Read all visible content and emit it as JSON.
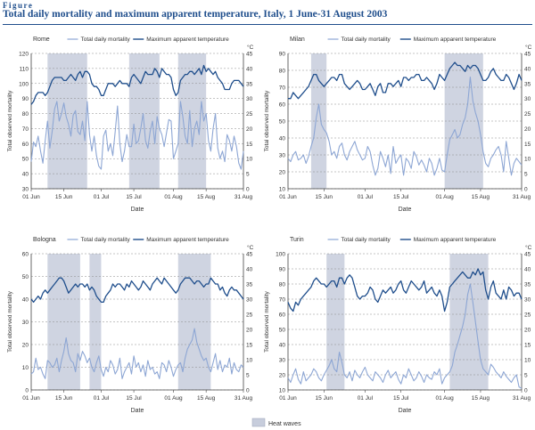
{
  "figure": {
    "label": "Figure",
    "title": "Total daily mortality and maximum apparent temperature, Italy, 1 June-31 August 2003"
  },
  "colors": {
    "mortality": "#8da6d4",
    "temperature": "#1f4e8c",
    "heatwave": "#c7cddc",
    "grid": "#8a8a8a"
  },
  "bottom_legend": {
    "heatwave_label": "Heat waves"
  },
  "chart_data": [
    {
      "type": "line",
      "title": "Rome",
      "xlabel": "Date",
      "ylabel": "Total observed mortality",
      "y2label": "°C",
      "xticks": [
        "01 Jun",
        "15 Jun",
        "01 Jul",
        "15 Jul",
        "01 Aug",
        "15 Aug",
        "31 Aug"
      ],
      "xtick_days": [
        0,
        14,
        30,
        44,
        61,
        75,
        91
      ],
      "ylim": [
        30,
        120
      ],
      "yticks": [
        30,
        40,
        50,
        60,
        70,
        80,
        90,
        100,
        110,
        120
      ],
      "y2lim": [
        0,
        45
      ],
      "y2ticks": [
        0,
        5,
        10,
        15,
        20,
        25,
        30,
        35,
        40,
        45
      ],
      "heatwaves": [
        [
          7,
          24
        ],
        [
          42,
          55
        ],
        [
          63,
          75
        ]
      ],
      "legend": [
        "Total daily mortality",
        "Maximum apparent temperature"
      ],
      "series": [
        {
          "name": "Total daily mortality",
          "axis": "left",
          "values": [
            48,
            61,
            58,
            65,
            55,
            47,
            62,
            75,
            57,
            68,
            83,
            88,
            75,
            80,
            87,
            78,
            73,
            65,
            79,
            82,
            68,
            66,
            75,
            62,
            88,
            66,
            55,
            65,
            52,
            45,
            43,
            65,
            69,
            55,
            60,
            52,
            68,
            85,
            60,
            48,
            55,
            66,
            58,
            58,
            73,
            60,
            62,
            70,
            80,
            62,
            57,
            68,
            75,
            60,
            78,
            70,
            66,
            58,
            67,
            76,
            75,
            50,
            55,
            60,
            88,
            78,
            65,
            60,
            82,
            58,
            70,
            75,
            66,
            88,
            75,
            80,
            62,
            55,
            70,
            80,
            57,
            50,
            55,
            48,
            66,
            62,
            55,
            65,
            58,
            47,
            43,
            55
          ]
        },
        {
          "name": "Maximum apparent temperature",
          "axis": "right",
          "values": [
            28,
            29,
            31,
            32,
            32,
            32,
            31,
            32,
            34,
            36,
            37,
            37,
            37,
            37,
            36,
            36,
            37,
            38,
            37,
            36,
            38,
            39,
            37,
            39,
            39,
            38,
            35,
            34,
            34,
            33,
            31,
            31,
            33,
            35,
            35,
            35,
            34,
            35,
            36,
            35,
            35,
            35,
            34,
            37,
            38,
            37,
            36,
            35,
            37,
            39,
            38,
            38,
            38,
            40,
            39,
            37,
            40,
            39,
            38,
            38,
            37,
            33,
            31,
            32,
            36,
            37,
            38,
            38,
            39,
            39,
            38,
            39,
            40,
            38,
            41,
            39,
            40,
            39,
            38,
            39,
            37,
            36,
            35,
            33,
            33,
            33,
            35,
            36,
            36,
            36,
            35,
            34
          ]
        }
      ]
    },
    {
      "type": "line",
      "title": "Milan",
      "xlabel": "Date",
      "ylabel": "Total observed mortality",
      "y2label": "°C",
      "xticks": [
        "01 Jun",
        "15 Jun",
        "01 Jul",
        "15 Jul",
        "01 Aug",
        "15 Aug",
        "31 Aug"
      ],
      "xtick_days": [
        0,
        14,
        30,
        44,
        61,
        75,
        91
      ],
      "ylim": [
        10,
        90
      ],
      "yticks": [
        10,
        20,
        30,
        40,
        50,
        60,
        70,
        80,
        90
      ],
      "y2lim": [
        0,
        45
      ],
      "y2ticks": [
        0,
        5,
        10,
        15,
        20,
        25,
        30,
        35,
        40,
        45
      ],
      "heatwaves": [
        [
          9,
          15
        ],
        [
          61,
          76
        ]
      ],
      "legend": [
        "Total daily mortality",
        "Maximum apparent temperature"
      ],
      "series": [
        {
          "name": "Total daily mortality",
          "axis": "left",
          "values": [
            28,
            26,
            30,
            32,
            27,
            28,
            30,
            25,
            29,
            35,
            40,
            52,
            60,
            48,
            45,
            43,
            38,
            30,
            32,
            28,
            35,
            37,
            30,
            27,
            32,
            35,
            38,
            33,
            30,
            27,
            28,
            35,
            32,
            24,
            18,
            22,
            32,
            28,
            23,
            30,
            19,
            35,
            25,
            28,
            30,
            18,
            28,
            26,
            22,
            32,
            29,
            24,
            27,
            24,
            20,
            28,
            25,
            18,
            22,
            28,
            21,
            20,
            30,
            39,
            42,
            45,
            40,
            42,
            48,
            52,
            60,
            76,
            62,
            55,
            50,
            42,
            32,
            25,
            23,
            28,
            30,
            33,
            35,
            30,
            20,
            38,
            28,
            18,
            25,
            28,
            26,
            24
          ]
        },
        {
          "name": "Maximum apparent temperature",
          "axis": "right",
          "values": [
            30,
            30,
            32,
            31,
            30,
            31,
            32,
            33,
            34,
            36,
            38,
            38,
            36,
            35,
            34,
            35,
            36,
            37,
            37,
            36,
            38,
            38,
            35,
            34,
            33,
            34,
            35,
            36,
            35,
            33,
            33,
            34,
            35,
            33,
            31,
            34,
            35,
            32,
            32,
            35,
            35,
            34,
            35,
            36,
            34,
            37,
            37,
            36,
            37,
            37,
            38,
            38,
            36,
            36,
            37,
            36,
            35,
            33,
            35,
            38,
            37,
            36,
            38,
            40,
            41,
            42,
            41,
            41,
            40,
            39,
            41,
            40,
            41,
            41,
            40,
            38,
            36,
            36,
            37,
            39,
            40,
            38,
            37,
            36,
            36,
            38,
            37,
            35,
            33,
            35,
            38,
            36
          ]
        }
      ]
    },
    {
      "type": "line",
      "title": "Bologna",
      "xlabel": "Date",
      "ylabel": "Total observed mortality",
      "y2label": "°C",
      "xticks": [
        "01 Jun",
        "15 Jun",
        "01 Jul",
        "15 Jul",
        "01 Aug",
        "15 Aug",
        "31 Aug"
      ],
      "xtick_days": [
        0,
        14,
        30,
        44,
        61,
        75,
        91
      ],
      "ylim": [
        0,
        60
      ],
      "yticks": [
        0,
        10,
        20,
        30,
        40,
        50,
        60
      ],
      "y2lim": [
        0,
        45
      ],
      "y2ticks": [
        0,
        5,
        10,
        15,
        20,
        25,
        30,
        35,
        40,
        45
      ],
      "heatwaves": [
        [
          7,
          21
        ],
        [
          25,
          30
        ],
        [
          63,
          77
        ]
      ],
      "legend": [
        "Total daily mortality",
        "Maximum apparent temperature"
      ],
      "series": [
        {
          "name": "Total daily mortality",
          "axis": "left",
          "values": [
            7,
            8,
            14,
            9,
            10,
            7,
            5,
            13,
            12,
            10,
            11,
            14,
            8,
            13,
            17,
            23,
            16,
            13,
            12,
            8,
            16,
            13,
            17,
            15,
            12,
            14,
            10,
            8,
            12,
            15,
            9,
            6,
            10,
            8,
            13,
            11,
            7,
            9,
            14,
            5,
            8,
            10,
            12,
            7,
            15,
            10,
            12,
            8,
            11,
            6,
            13,
            9,
            10,
            7,
            8,
            5,
            12,
            11,
            8,
            13,
            10,
            6,
            9,
            11,
            12,
            8,
            14,
            18,
            20,
            22,
            27,
            21,
            18,
            15,
            13,
            14,
            10,
            8,
            12,
            16,
            9,
            13,
            8,
            11,
            10,
            14,
            7,
            12,
            9,
            8,
            11,
            10
          ]
        },
        {
          "name": "Maximum apparent temperature",
          "axis": "right",
          "values": [
            30,
            29,
            30,
            31,
            30,
            32,
            33,
            32,
            33,
            34,
            35,
            36,
            37,
            37,
            36,
            34,
            32,
            33,
            34,
            35,
            34,
            35,
            35,
            34,
            35,
            33,
            34,
            33,
            31,
            30,
            29,
            29,
            31,
            32,
            33,
            35,
            34,
            35,
            35,
            34,
            33,
            35,
            34,
            36,
            35,
            34,
            33,
            34,
            36,
            35,
            34,
            33,
            35,
            36,
            37,
            36,
            35,
            37,
            36,
            35,
            34,
            33,
            32,
            33,
            35,
            36,
            37,
            37,
            37,
            36,
            35,
            36,
            36,
            35,
            34,
            35,
            35,
            37,
            36,
            35,
            35,
            33,
            34,
            32,
            31,
            33,
            34,
            33,
            33,
            32,
            31,
            30
          ]
        }
      ]
    },
    {
      "type": "line",
      "title": "Turin",
      "xlabel": "Date",
      "ylabel": "Total observed mortality",
      "y2label": "°C",
      "xticks": [
        "01 Jun",
        "15 Jun",
        "01 Jul",
        "15 Jul",
        "01 Aug",
        "15 Aug",
        "31 Aug"
      ],
      "xtick_days": [
        0,
        14,
        30,
        44,
        61,
        75,
        91
      ],
      "ylim": [
        10,
        100
      ],
      "yticks": [
        10,
        20,
        30,
        40,
        50,
        60,
        70,
        80,
        90,
        100
      ],
      "y2lim": [
        0,
        45
      ],
      "y2ticks": [
        0,
        5,
        10,
        15,
        20,
        25,
        30,
        35,
        40,
        45
      ],
      "heatwaves": [
        [
          15,
          22
        ],
        [
          63,
          78
        ]
      ],
      "legend": [
        "Total daily mortality",
        "Maximum apparent temperature"
      ],
      "series": [
        {
          "name": "Total daily mortality",
          "axis": "left",
          "values": [
            18,
            15,
            20,
            24,
            17,
            14,
            22,
            16,
            18,
            20,
            24,
            22,
            18,
            16,
            20,
            23,
            26,
            30,
            24,
            22,
            35,
            28,
            20,
            18,
            22,
            16,
            23,
            20,
            18,
            22,
            25,
            20,
            18,
            16,
            22,
            20,
            18,
            15,
            20,
            23,
            18,
            20,
            22,
            17,
            14,
            20,
            18,
            24,
            20,
            16,
            18,
            22,
            19,
            15,
            20,
            18,
            17,
            22,
            20,
            24,
            14,
            18,
            20,
            22,
            26,
            35,
            40,
            46,
            52,
            60,
            73,
            80,
            68,
            55,
            42,
            30,
            24,
            22,
            20,
            27,
            25,
            22,
            20,
            18,
            22,
            19,
            17,
            15,
            18,
            20,
            12,
            11
          ]
        },
        {
          "name": "Maximum apparent temperature",
          "axis": "right",
          "values": [
            29,
            27,
            26,
            29,
            28,
            30,
            31,
            32,
            33,
            34,
            36,
            37,
            36,
            35,
            35,
            34,
            35,
            36,
            36,
            34,
            37,
            37,
            35,
            37,
            38,
            37,
            34,
            31,
            30,
            31,
            31,
            32,
            34,
            33,
            30,
            29,
            31,
            33,
            32,
            33,
            34,
            32,
            33,
            35,
            36,
            33,
            32,
            34,
            36,
            35,
            34,
            33,
            34,
            36,
            32,
            33,
            34,
            32,
            31,
            33,
            31,
            26,
            29,
            34,
            35,
            36,
            37,
            38,
            39,
            38,
            37,
            37,
            39,
            38,
            40,
            38,
            39,
            33,
            30,
            34,
            36,
            32,
            31,
            30,
            33,
            30,
            34,
            33,
            31,
            32,
            32,
            30
          ]
        }
      ]
    }
  ]
}
